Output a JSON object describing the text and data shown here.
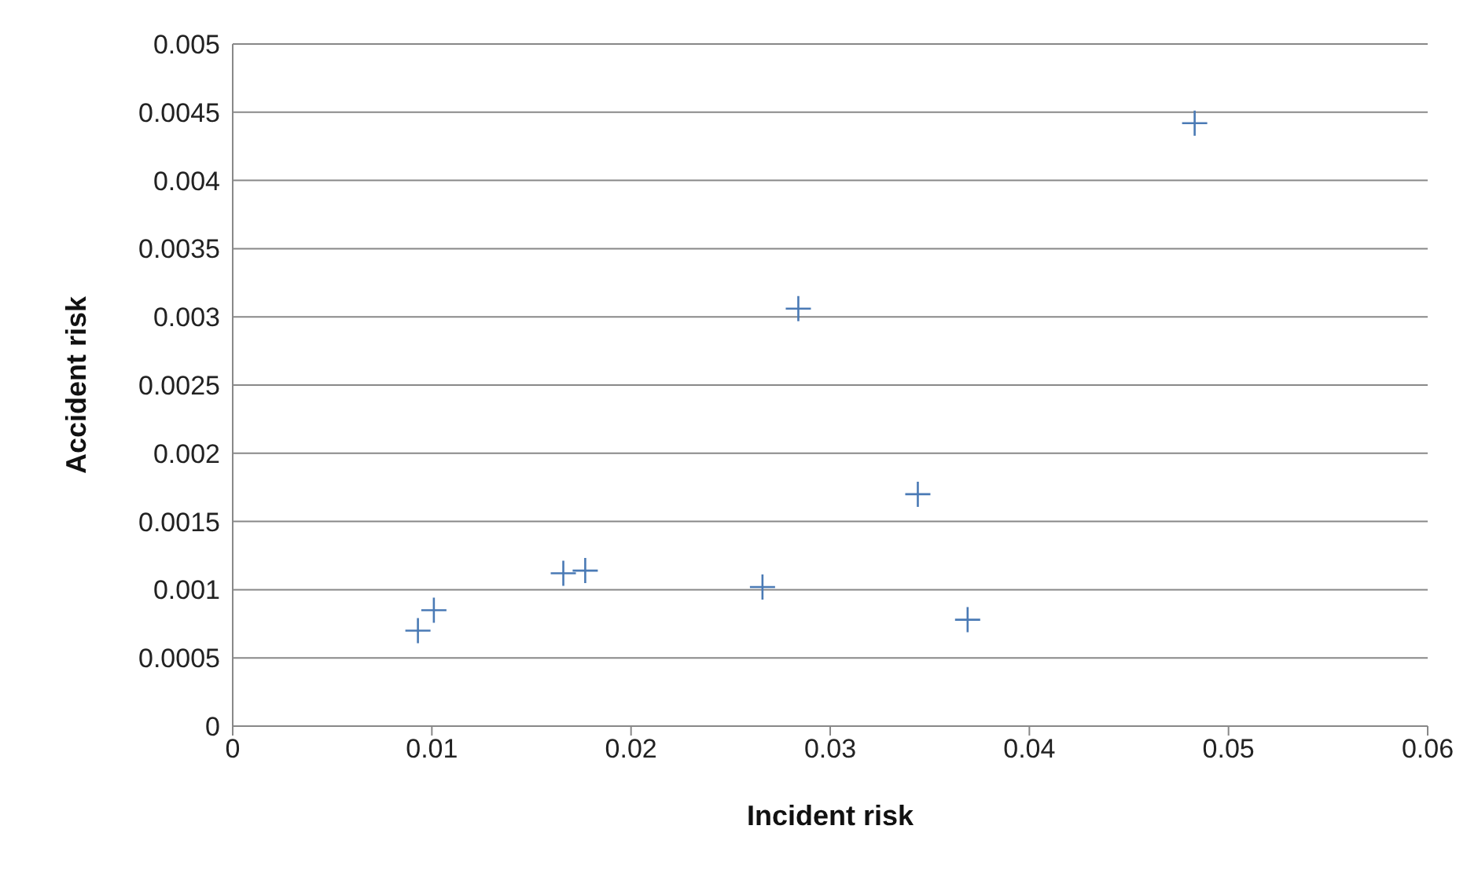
{
  "chart_data": {
    "type": "scatter",
    "xlabel": "Incident risk",
    "ylabel": "Accident risk",
    "x": [
      0.0093,
      0.0101,
      0.0166,
      0.0177,
      0.0266,
      0.0284,
      0.0344,
      0.0369,
      0.0483
    ],
    "series": [
      {
        "color": "#4a7ab5",
        "values": [
          0.0007,
          0.00085,
          0.00112,
          0.00114,
          0.00102,
          0.00306,
          0.0017,
          0.00078,
          0.00442
        ]
      }
    ],
    "xlim": [
      0,
      0.06
    ],
    "xticks": [
      0,
      0.01,
      0.02,
      0.03,
      0.04,
      0.05,
      0.06
    ],
    "ylim": [
      0,
      0.005
    ],
    "yticks": [
      0,
      0.0005,
      0.001,
      0.0015,
      0.002,
      0.0025,
      0.003,
      0.0035,
      0.004,
      0.0045,
      0.005
    ],
    "grid": "y",
    "marker": "cross",
    "legend": false
  }
}
